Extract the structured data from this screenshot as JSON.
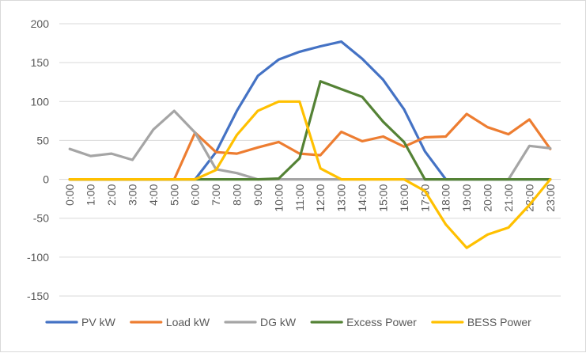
{
  "chart_data": {
    "type": "line",
    "title": "",
    "xlabel": "",
    "ylabel": "",
    "categories": [
      "0:00",
      "1:00",
      "2:00",
      "3:00",
      "4:00",
      "5:00",
      "6:00",
      "7:00",
      "8:00",
      "9:00",
      "10:00",
      "11:00",
      "12:00",
      "13:00",
      "14:00",
      "15:00",
      "16:00",
      "17:00",
      "18:00",
      "19:00",
      "20:00",
      "21:00",
      "22:00",
      "23:00"
    ],
    "ylim": [
      -150,
      200
    ],
    "yticks": [
      "200",
      "150",
      "100",
      "50",
      "0",
      "-50",
      "-100",
      "-150"
    ],
    "grid": "horizontal",
    "legend": "bottom",
    "series": [
      {
        "name": "PV kW",
        "color": "#4472C4",
        "values": [
          0,
          0,
          0,
          0,
          0,
          0,
          0,
          35,
          88,
          133,
          154,
          164,
          171,
          177,
          155,
          128,
          90,
          36,
          0,
          0,
          0,
          0,
          0,
          0
        ]
      },
      {
        "name": "Load kW",
        "color": "#ED7D31",
        "values": [
          0,
          0,
          0,
          0,
          0,
          0,
          60,
          35,
          33,
          41,
          48,
          33,
          31,
          61,
          49,
          55,
          42,
          54,
          55,
          84,
          67,
          58,
          77,
          39
        ]
      },
      {
        "name": "DG kW",
        "color": "#A5A5A5",
        "values": [
          39,
          30,
          33,
          25,
          64,
          88,
          60,
          13,
          8,
          0,
          0,
          0,
          0,
          0,
          0,
          0,
          0,
          0,
          0,
          0,
          0,
          0,
          43,
          40
        ]
      },
      {
        "name": "Excess Power",
        "color": "#548235",
        "values": [
          0,
          0,
          0,
          0,
          0,
          0,
          0,
          0,
          0,
          0,
          1,
          27,
          126,
          116,
          106,
          74,
          48,
          0,
          0,
          0,
          0,
          0,
          0,
          0
        ]
      },
      {
        "name": "BESS Power",
        "color": "#FFC000",
        "values": [
          0,
          0,
          0,
          0,
          0,
          0,
          0,
          12,
          57,
          88,
          100,
          100,
          14,
          0,
          0,
          0,
          0,
          -15,
          -58,
          -88,
          -71,
          -62,
          -33,
          0
        ]
      }
    ]
  }
}
